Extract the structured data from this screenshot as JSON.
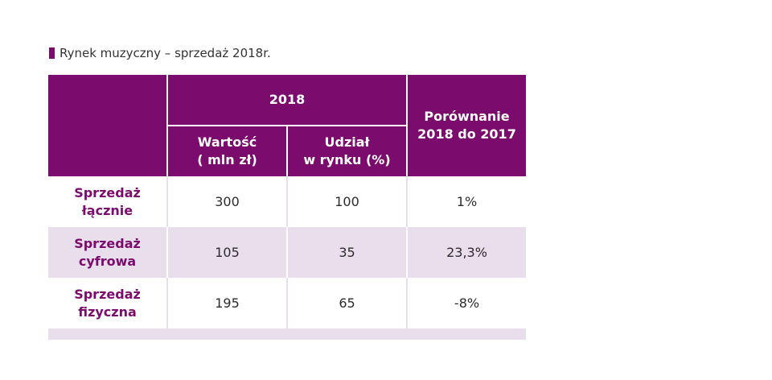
{
  "caption": "Rynek muzyczny – sprzedaż 2018r.",
  "colors": {
    "accent": "#7b0c6e",
    "stripe": "#e8deec"
  },
  "chart_data": {
    "type": "table",
    "header": {
      "year": "2018",
      "col_value_line1": "Wartość",
      "col_value_line2": "( mln zł)",
      "col_share_line1": "Udział",
      "col_share_line2": "w rynku (%)",
      "col_compare_line1": "Porównanie",
      "col_compare_line2": "2018 do 2017"
    },
    "rows": [
      {
        "label_line1": "Sprzedaż",
        "label_line2": "łącznie",
        "value": "300",
        "share": "100",
        "compare": "1%"
      },
      {
        "label_line1": "Sprzedaż",
        "label_line2": "cyfrowa",
        "value": "105",
        "share": "35",
        "compare": "23,3%"
      },
      {
        "label_line1": "Sprzedaż",
        "label_line2": "fizyczna",
        "value": "195",
        "share": "65",
        "compare": "-8%"
      }
    ]
  }
}
